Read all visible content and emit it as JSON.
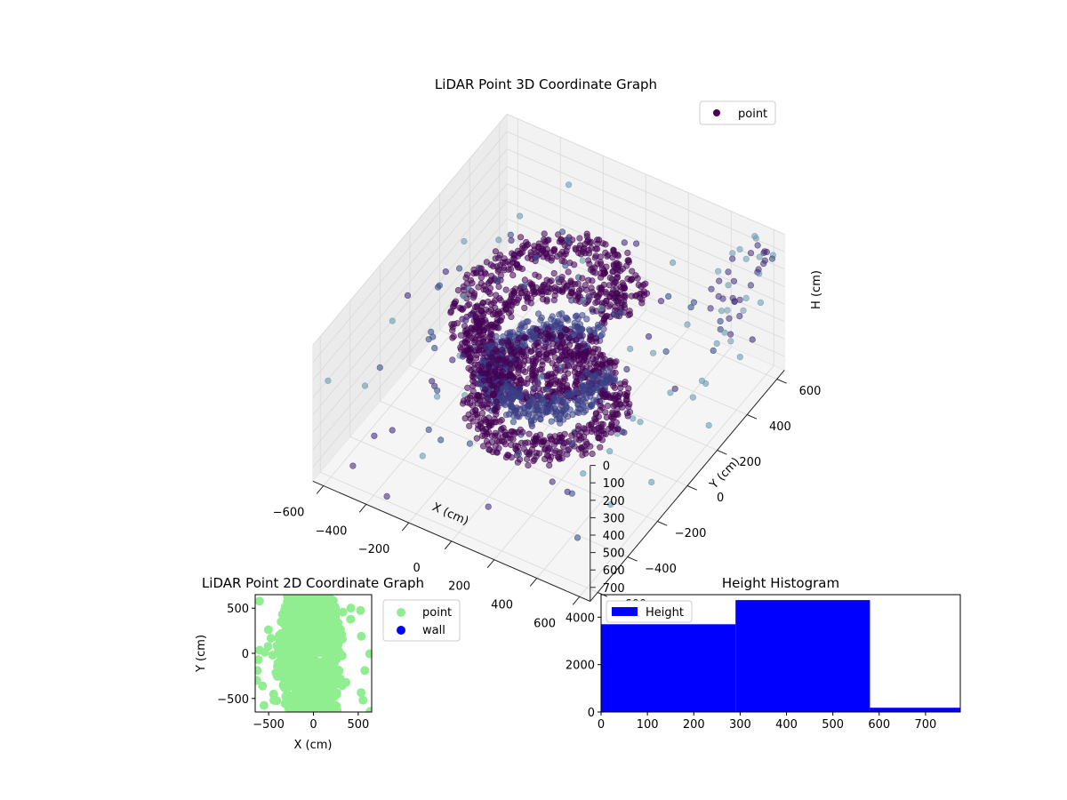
{
  "colors": {
    "point_legend": "#440154",
    "point_2d": "#90ee90",
    "wall": "#0000ff",
    "bar": "#0000ff"
  },
  "chart_data": [
    {
      "type": "scatter3d",
      "title": "LiDAR Point 3D Coordinate Graph",
      "xlabel": "X (cm)",
      "ylabel": "Y (cm)",
      "zlabel": "H (cm)",
      "xticks": [
        "−600",
        "−400",
        "−200",
        "0",
        "200",
        "400",
        "600"
      ],
      "yticks": [
        "−600",
        "−400",
        "−200",
        "0",
        "200",
        "400",
        "600"
      ],
      "zticks": [
        "0",
        "100",
        "200",
        "300",
        "400",
        "500",
        "600",
        "700"
      ],
      "xlim": [
        -650,
        650
      ],
      "ylim": [
        -650,
        650
      ],
      "zlim": [
        0,
        780
      ],
      "zaxis_inverted": true,
      "legend": [
        {
          "label": "point",
          "color": "#440154"
        }
      ],
      "legend_position": "top-right",
      "grid": true,
      "colormap": "viridis",
      "description_series": {
        "name": "point",
        "bands": [
          {
            "h": 120,
            "r_min": 250,
            "r_max": 380
          },
          {
            "h": 300,
            "r_min": 220,
            "r_max": 330
          },
          {
            "h": 460,
            "r_min": 150,
            "r_max": 270
          },
          {
            "h": 620,
            "r_min": 200,
            "r_max": 330
          }
        ]
      }
    },
    {
      "type": "scatter",
      "title": "LiDAR Point 2D Coordinate Graph",
      "xlabel": "X (cm)",
      "ylabel": "Y (cm)",
      "xticks": [
        "−500",
        "0",
        "500"
      ],
      "yticks": [
        "−500",
        "0",
        "500"
      ],
      "xlim": [
        -650,
        650
      ],
      "ylim": [
        -650,
        650
      ],
      "legend": [
        {
          "label": "point",
          "color": "#90ee90"
        },
        {
          "label": "wall",
          "color": "#0000ff"
        }
      ],
      "legend_position": "outside-right",
      "series": [
        {
          "name": "point",
          "color": "#90ee90"
        },
        {
          "name": "wall",
          "color": "#0000ff",
          "points": []
        }
      ]
    },
    {
      "type": "histogram",
      "title": "Height Histogram",
      "xticks": [
        "0",
        "100",
        "200",
        "300",
        "400",
        "500",
        "600",
        "700"
      ],
      "yticks": [
        "0",
        "2000",
        "4000"
      ],
      "xlim": [
        0,
        775
      ],
      "ylim": [
        0,
        4950
      ],
      "bins": [
        {
          "x0": 0,
          "x1": 290,
          "count": 3700
        },
        {
          "x0": 290,
          "x1": 580,
          "count": 4720
        },
        {
          "x0": 580,
          "x1": 775,
          "count": 180
        }
      ],
      "legend": [
        {
          "label": "Height",
          "color": "#0000ff"
        }
      ],
      "legend_position": "top-left"
    }
  ]
}
